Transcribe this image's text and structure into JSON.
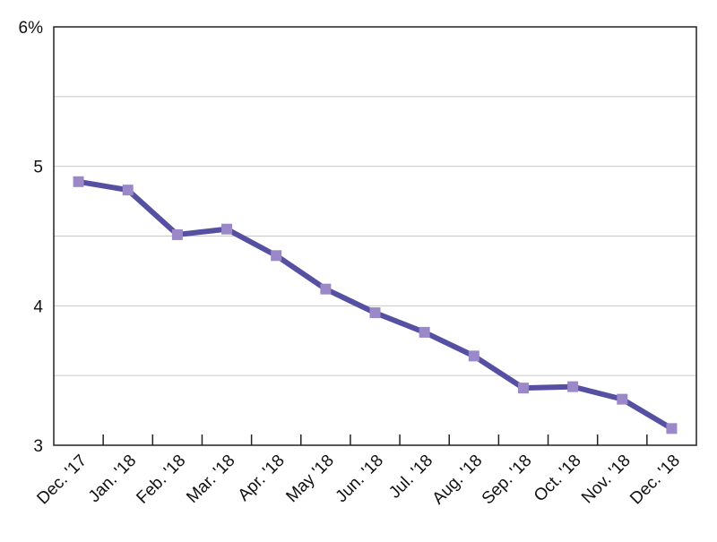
{
  "chart_data": {
    "type": "line",
    "categories": [
      "Dec. '17",
      "Jan. '18",
      "Feb. '18",
      "Mar. '18",
      "Apr. '18",
      "May '18",
      "Jun. '18",
      "Jul. '18",
      "Aug. '18",
      "Sep. '18",
      "Oct. '18",
      "Nov. '18",
      "Dec. '18"
    ],
    "values": [
      4.89,
      4.83,
      4.51,
      4.55,
      4.36,
      4.12,
      3.95,
      3.81,
      3.64,
      3.41,
      3.42,
      3.33,
      3.12
    ],
    "color": "#5550a2",
    "marker_color": "#9b88c9",
    "ylim": [
      3,
      6
    ],
    "yticks": [
      3,
      4,
      5,
      {
        "value": 6,
        "label": "6%"
      }
    ],
    "minor_grid": [
      3.5,
      4.5,
      5.5
    ],
    "grid": true
  }
}
